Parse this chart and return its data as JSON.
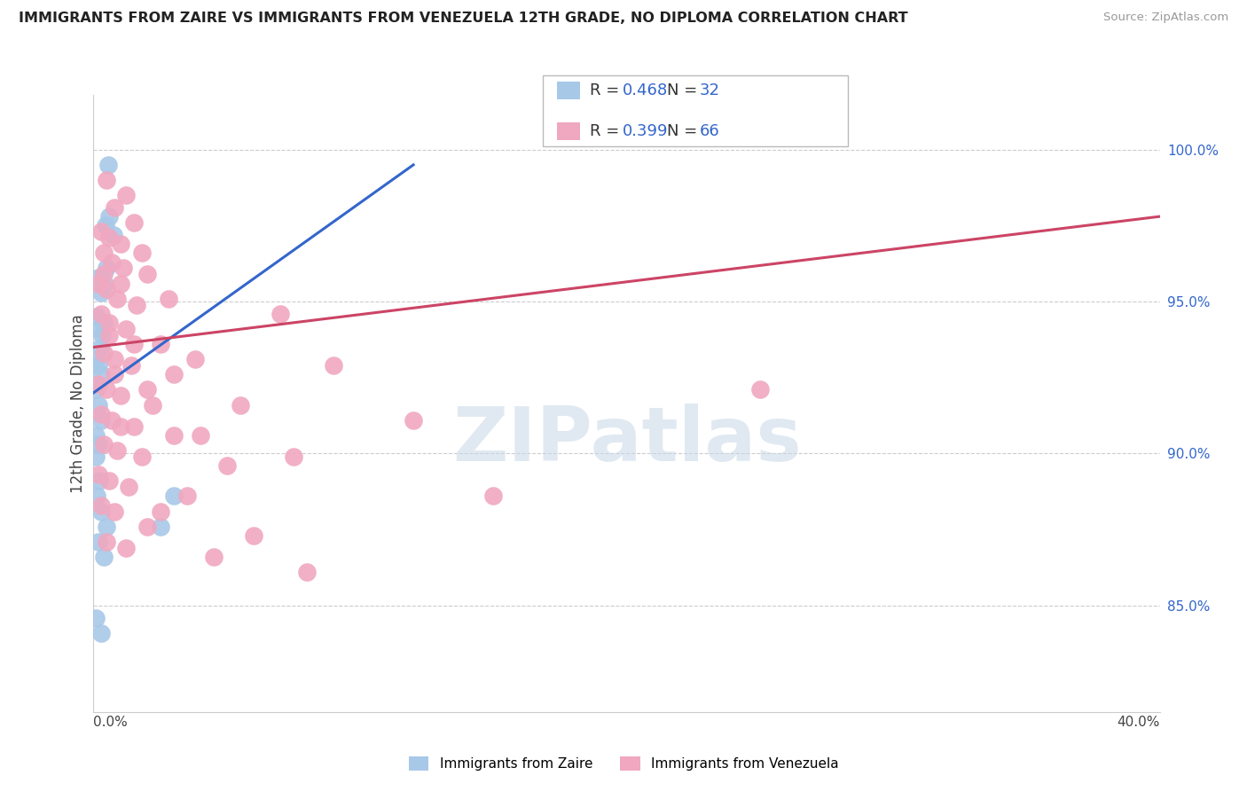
{
  "title": "IMMIGRANTS FROM ZAIRE VS IMMIGRANTS FROM VENEZUELA 12TH GRADE, NO DIPLOMA CORRELATION CHART",
  "source": "Source: ZipAtlas.com",
  "ylabel": "12th Grade, No Diploma",
  "xlim": [
    0.0,
    40.0
  ],
  "ylim": [
    81.5,
    101.8
  ],
  "yticks": [
    85.0,
    90.0,
    95.0,
    100.0
  ],
  "ytick_labels": [
    "85.0%",
    "90.0%",
    "95.0%",
    "100.0%"
  ],
  "x_left_label": "0.0%",
  "x_right_label": "40.0%",
  "legend_r_zaire": "0.468",
  "legend_n_zaire": "32",
  "legend_r_venezuela": "0.399",
  "legend_n_venezuela": "66",
  "zaire_color": "#a8c8e8",
  "venezuela_color": "#f0a8c0",
  "trend_zaire_color": "#3366cc",
  "trend_venezuela_color": "#cc4466",
  "r_n_color": "#3366cc",
  "legend_label_zaire": "Immigrants from Zaire",
  "legend_label_venezuela": "Immigrants from Venezuela",
  "grid_color": "#cccccc",
  "watermark_color": "#c8d8e8",
  "zaire_points_x": [
    0.25,
    0.45,
    0.6,
    0.75,
    0.2,
    0.3,
    0.42,
    0.5,
    0.12,
    0.22,
    0.32,
    0.4,
    0.1,
    0.18,
    0.28,
    0.1,
    0.2,
    0.3,
    0.1,
    0.2,
    0.1,
    0.22,
    0.12,
    0.28,
    0.5,
    0.2,
    0.4,
    0.1,
    0.28,
    0.55,
    2.5,
    3.0
  ],
  "zaire_points_y": [
    93.5,
    97.5,
    97.8,
    97.2,
    95.8,
    95.3,
    95.6,
    96.1,
    94.5,
    94.1,
    93.9,
    94.3,
    93.1,
    92.9,
    92.6,
    92.1,
    91.6,
    91.1,
    90.6,
    90.3,
    89.9,
    89.1,
    88.6,
    88.1,
    87.6,
    87.1,
    86.6,
    84.6,
    84.1,
    99.5,
    87.6,
    88.6
  ],
  "venezuela_points_x": [
    0.5,
    1.2,
    0.8,
    1.5,
    0.3,
    0.6,
    1.0,
    1.8,
    0.4,
    0.7,
    1.1,
    2.0,
    0.2,
    0.5,
    0.9,
    1.6,
    0.3,
    0.6,
    1.2,
    2.5,
    0.4,
    0.8,
    1.4,
    3.0,
    0.2,
    0.5,
    1.0,
    2.2,
    0.3,
    0.7,
    1.5,
    4.0,
    0.4,
    0.9,
    1.8,
    5.0,
    0.2,
    0.6,
    1.3,
    3.5,
    0.3,
    0.8,
    2.0,
    6.0,
    0.5,
    1.2,
    4.5,
    8.0,
    0.4,
    1.0,
    2.8,
    7.0,
    0.6,
    1.5,
    3.8,
    9.0,
    0.8,
    2.0,
    5.5,
    12.0,
    1.0,
    3.0,
    7.5,
    15.0,
    2.5,
    25.0
  ],
  "venezuela_points_y": [
    99.0,
    98.5,
    98.1,
    97.6,
    97.3,
    97.1,
    96.9,
    96.6,
    96.6,
    96.3,
    96.1,
    95.9,
    95.6,
    95.4,
    95.1,
    94.9,
    94.6,
    94.3,
    94.1,
    93.6,
    93.3,
    93.1,
    92.9,
    92.6,
    92.3,
    92.1,
    91.9,
    91.6,
    91.3,
    91.1,
    90.9,
    90.6,
    90.3,
    90.1,
    89.9,
    89.6,
    89.3,
    89.1,
    88.9,
    88.6,
    88.3,
    88.1,
    87.6,
    87.3,
    87.1,
    86.9,
    86.6,
    86.1,
    95.9,
    95.6,
    95.1,
    94.6,
    93.9,
    93.6,
    93.1,
    92.9,
    92.6,
    92.1,
    91.6,
    91.1,
    90.9,
    90.6,
    89.9,
    88.6,
    88.1,
    92.1
  ],
  "trend_zaire_x0": 0.0,
  "trend_zaire_y0": 92.0,
  "trend_zaire_x1": 12.0,
  "trend_zaire_y1": 99.5,
  "trend_venezuela_x0": 0.0,
  "trend_venezuela_y0": 93.5,
  "trend_venezuela_x1": 40.0,
  "trend_venezuela_y1": 97.8
}
